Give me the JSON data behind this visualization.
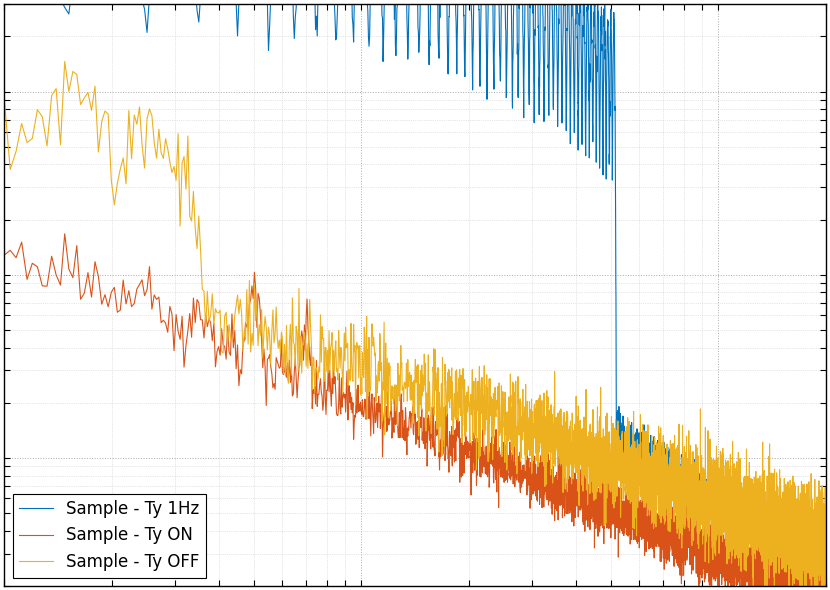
{
  "title": "",
  "xlabel": "",
  "ylabel": "",
  "line1_label": "Sample - Ty 1Hz",
  "line2_label": "Sample - Ty ON",
  "line3_label": "Sample - Ty OFF",
  "line1_color": "#0072BD",
  "line2_color": "#D95319",
  "line3_color": "#EDB120",
  "background_color": "#FFFFFF",
  "figsize": [
    8.3,
    5.9
  ],
  "dpi": 100,
  "legend_loc": "lower left",
  "legend_fontsize": 12,
  "linewidth": 0.8
}
